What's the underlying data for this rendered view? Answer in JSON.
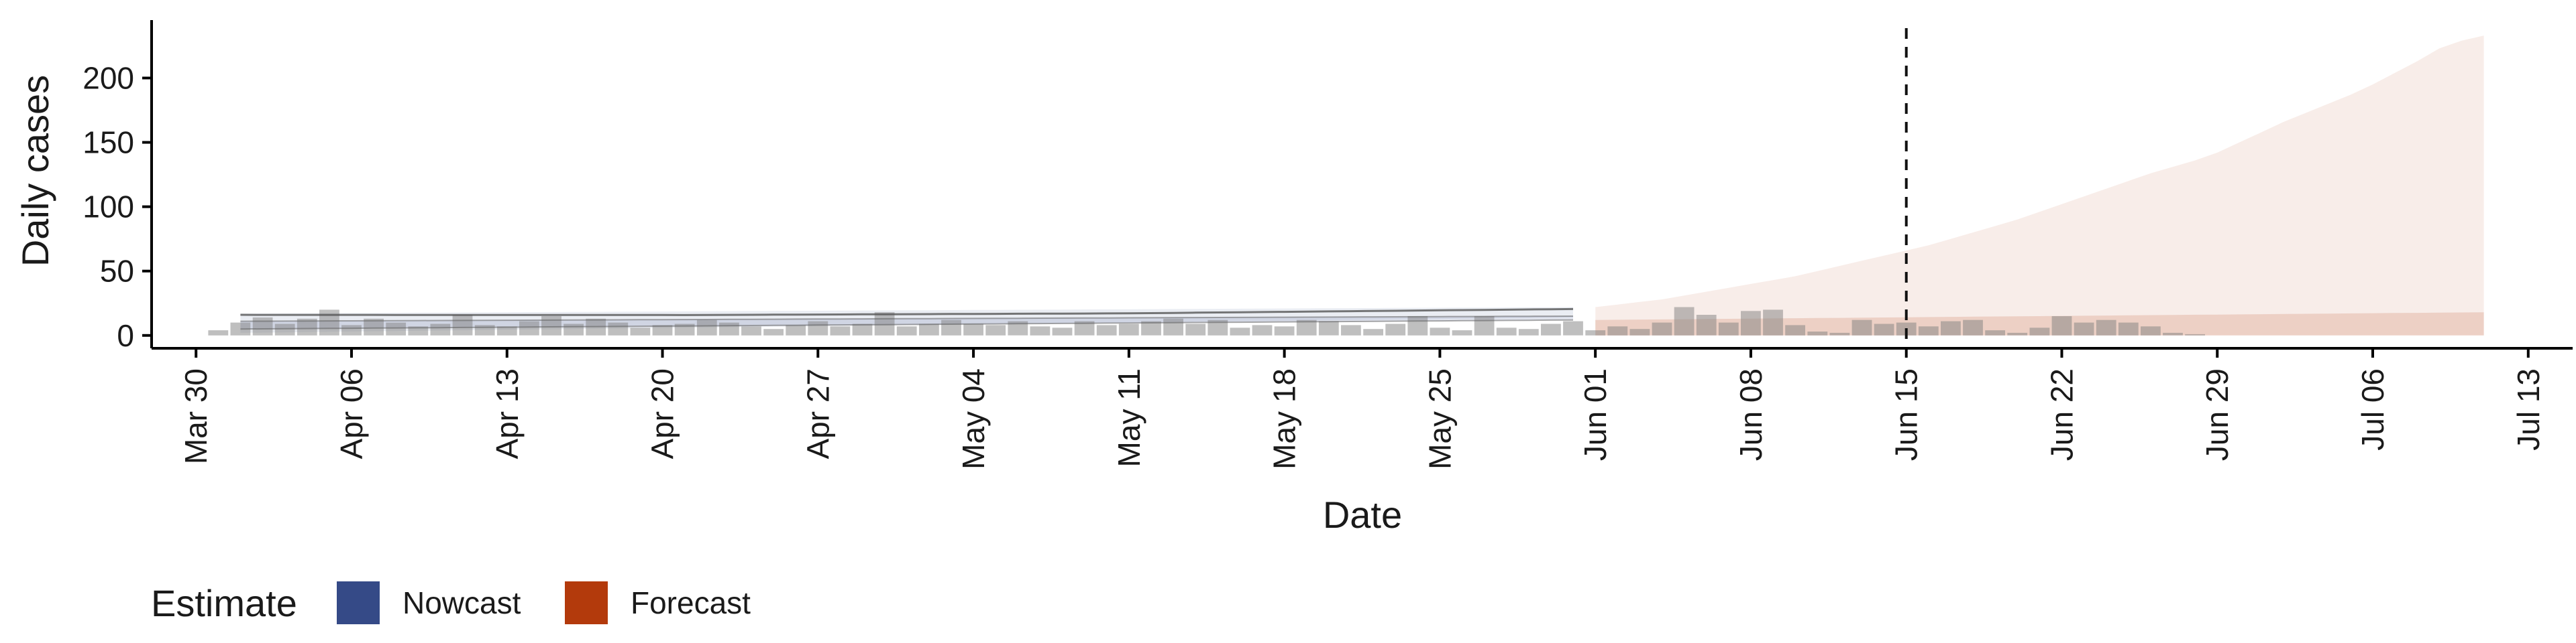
{
  "chart_data": {
    "type": "area",
    "xlabel": "Date",
    "ylabel": "Daily cases",
    "x_type": "date",
    "xlim": [
      "2020-03-28",
      "2020-07-15"
    ],
    "ylim": [
      -10,
      245
    ],
    "x_ticks": [
      "2020-03-30",
      "2020-04-06",
      "2020-04-13",
      "2020-04-20",
      "2020-04-27",
      "2020-05-04",
      "2020-05-11",
      "2020-05-18",
      "2020-05-25",
      "2020-06-01",
      "2020-06-08",
      "2020-06-15",
      "2020-06-22",
      "2020-06-29",
      "2020-07-06",
      "2020-07-13"
    ],
    "x_tick_labels": [
      "Mar 30",
      "Apr 06",
      "Apr 13",
      "Apr 20",
      "Apr 27",
      "May 04",
      "May 11",
      "May 18",
      "May 25",
      "Jun 01",
      "Jun 08",
      "Jun 15",
      "Jun 22",
      "Jun 29",
      "Jul 06",
      "Jul 13"
    ],
    "y_ticks": [
      0,
      50,
      100,
      150,
      200
    ],
    "y_tick_labels": [
      "0",
      "50",
      "100",
      "150",
      "200"
    ],
    "vline_date": "2020-06-15",
    "legend": {
      "title": "Estimate",
      "position": "bottom-left",
      "items": [
        {
          "label": "Nowcast",
          "color": "#354a87"
        },
        {
          "label": "Forecast",
          "color": "#b33a0c"
        }
      ]
    },
    "colors": {
      "nowcast": "#354a87",
      "forecast": "#b33a0c",
      "bars": "#7f7f7f",
      "median_line": "#555555"
    },
    "bars": {
      "start": "2020-03-31",
      "values": [
        4,
        10,
        14,
        9,
        13,
        20,
        8,
        13,
        10,
        7,
        9,
        16,
        8,
        7,
        11,
        15,
        9,
        13,
        10,
        6,
        8,
        9,
        12,
        10,
        7,
        5,
        8,
        11,
        7,
        9,
        18,
        7,
        9,
        12,
        9,
        8,
        11,
        7,
        6,
        11,
        8,
        9,
        11,
        13,
        9,
        12,
        6,
        8,
        7,
        12,
        11,
        8,
        5,
        9,
        15,
        6,
        4,
        15,
        6,
        5,
        9,
        11,
        4,
        7,
        5,
        10,
        22,
        16,
        10,
        19,
        20,
        8,
        3,
        2,
        12,
        9,
        10,
        7,
        11,
        12,
        4,
        2,
        6,
        15,
        10,
        12,
        10,
        7,
        2,
        1
      ]
    },
    "nowcast_band": {
      "start": "2020-04-01",
      "end": "2020-05-31",
      "outer_lower": [
        2,
        14
      ],
      "outer_upper": [
        17,
        22
      ],
      "inner_lower": [
        5,
        12
      ],
      "inner_upper": [
        11,
        15
      ],
      "median": [
        15,
        13,
        14,
        19
      ]
    },
    "forecast_band": {
      "start": "2020-06-01",
      "end": "2020-07-11",
      "outer_upper": [
        22,
        24,
        26,
        28,
        31,
        34,
        37,
        40,
        43,
        46,
        50,
        54,
        58,
        62,
        66,
        70,
        75,
        80,
        85,
        90,
        96,
        102,
        108,
        114,
        120,
        126,
        131,
        136,
        142,
        150,
        158,
        166,
        173,
        180,
        187,
        195,
        204,
        213,
        223,
        229,
        233
      ],
      "inner_upper": [
        12,
        13,
        14,
        15,
        16,
        17,
        18
      ],
      "inner_lower": [
        0,
        0
      ]
    }
  }
}
